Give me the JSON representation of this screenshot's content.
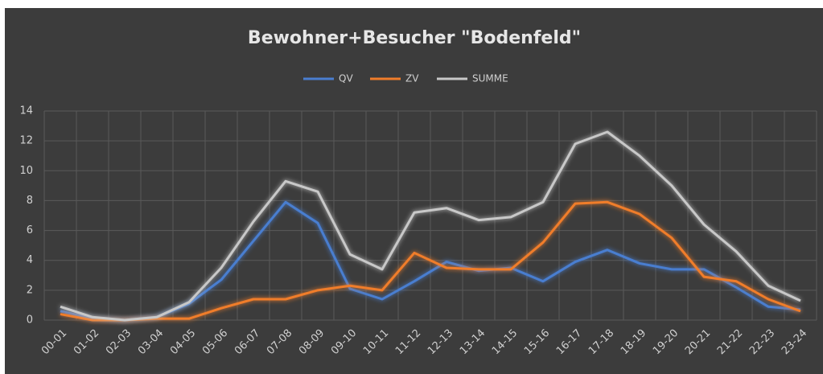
{
  "chart_data": {
    "type": "line",
    "title": "Bewohner+Besucher \"Bodenfeld\"",
    "categories": [
      "00-01",
      "01-02",
      "02-03",
      "03-04",
      "04-05",
      "05-06",
      "06-07",
      "07-08",
      "08-09",
      "09-10",
      "10-11",
      "11-12",
      "12-13",
      "13-14",
      "14-15",
      "15-16",
      "16-17",
      "17-18",
      "18-19",
      "19-20",
      "20-21",
      "21-22",
      "22-23",
      "23-24"
    ],
    "series": [
      {
        "name": "QV",
        "color": "#4a7ed0",
        "values": [
          0.6,
          0.1,
          0,
          0.2,
          1.1,
          2.7,
          5.3,
          7.9,
          6.5,
          2.1,
          1.4,
          2.6,
          3.9,
          3.3,
          3.5,
          2.6,
          3.9,
          4.7,
          3.8,
          3.4,
          3.4,
          2.2,
          0.9,
          0.7
        ]
      },
      {
        "name": "ZV",
        "color": "#f07d2a",
        "values": [
          0.4,
          0,
          0,
          0.1,
          0.1,
          0.8,
          1.4,
          1.4,
          2.0,
          2.3,
          2.0,
          4.5,
          3.5,
          3.4,
          3.4,
          5.2,
          7.8,
          7.9,
          7.1,
          5.5,
          2.9,
          2.6,
          1.4,
          0.6
        ]
      },
      {
        "name": "SUMME",
        "color": "#c8c8c8",
        "values": [
          0.9,
          0.2,
          0,
          0.2,
          1.2,
          3.5,
          6.6,
          9.3,
          8.6,
          4.4,
          3.4,
          7.2,
          7.5,
          6.7,
          6.9,
          7.9,
          11.8,
          12.6,
          11.0,
          9.0,
          6.4,
          4.6,
          2.3,
          1.3
        ]
      }
    ],
    "ylim": [
      0,
      14
    ],
    "yticks": [
      0,
      2,
      4,
      6,
      8,
      10,
      12,
      14
    ],
    "grid": true,
    "legend": "top"
  }
}
